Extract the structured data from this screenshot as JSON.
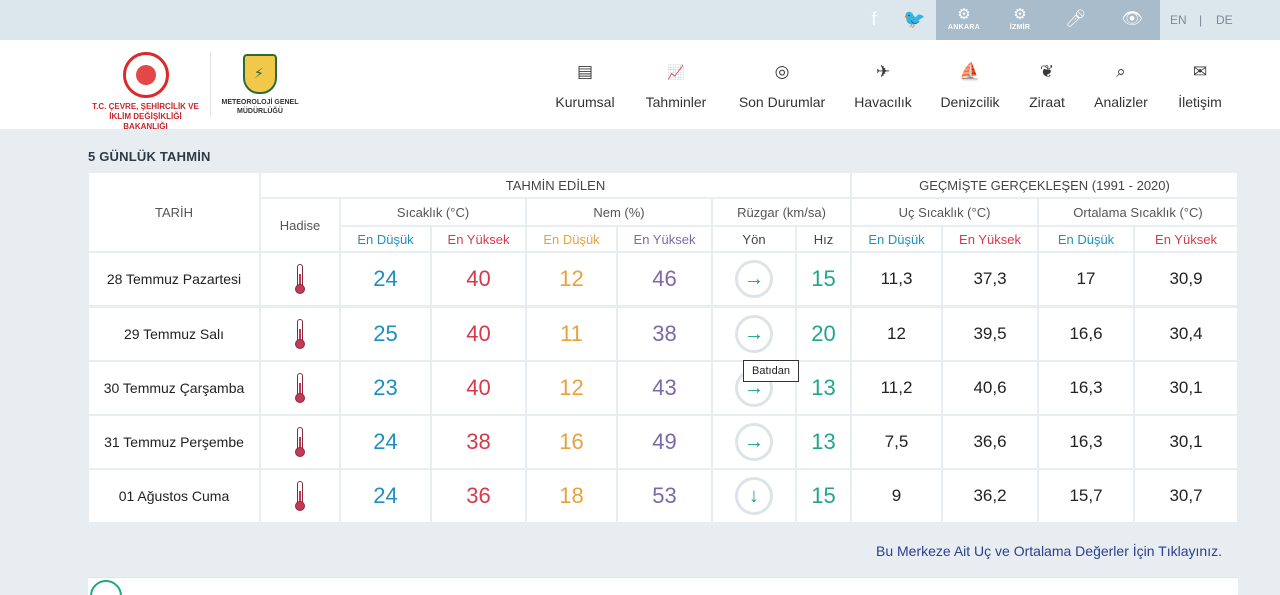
{
  "topbar": {
    "social": [
      {
        "name": "facebook-icon",
        "glyph": "f"
      },
      {
        "name": "twitter-icon",
        "glyph": "🐦"
      }
    ],
    "accessibility": [
      {
        "name": "ankara-sign-icon",
        "caption": "ANKARA"
      },
      {
        "name": "izmir-sign-icon",
        "caption": "İZMİR"
      },
      {
        "name": "microphone-icon",
        "caption": ""
      },
      {
        "name": "eye-slash-icon",
        "caption": ""
      }
    ],
    "languages": [
      "EN",
      "|",
      "DE"
    ]
  },
  "header": {
    "logo1_text": "T.C. ÇEVRE, ŞEHİRCİLİK VE İKLİM DEĞİŞİKLİĞİ BAKANLIĞI",
    "logo2_top": "METEOROLOJİ",
    "logo2_text": "METEOROLOJİ GENEL MÜDÜRLÜĞÜ",
    "nav": [
      {
        "name": "nav-kurumsal",
        "icon": "document-icon",
        "glyph": "▤",
        "label": "Kurumsal"
      },
      {
        "name": "nav-tahminler",
        "icon": "chart-icon",
        "glyph": "📈",
        "label": "Tahminler"
      },
      {
        "name": "nav-son-durumlar",
        "icon": "circle-check-icon",
        "glyph": "◎",
        "label": "Son Durumlar"
      },
      {
        "name": "nav-havacilik",
        "icon": "airplane-icon",
        "glyph": "✈",
        "label": "Havacılık"
      },
      {
        "name": "nav-denizcilik",
        "icon": "sail-icon",
        "glyph": "⛵",
        "label": "Denizcilik"
      },
      {
        "name": "nav-ziraat",
        "icon": "wheat-icon",
        "glyph": "❦",
        "label": "Ziraat"
      },
      {
        "name": "nav-analizler",
        "icon": "analysis-icon",
        "glyph": "⌕",
        "label": "Analizler"
      },
      {
        "name": "nav-iletisim",
        "icon": "envelope-icon",
        "glyph": "✉",
        "label": "İletişim"
      }
    ]
  },
  "section_title": "5 GÜNLÜK TAHMİN",
  "table": {
    "header": {
      "tarih": "TARİH",
      "tahmin_edilen": "TAHMİN EDİLEN",
      "gecmis": "GEÇMİŞTE GERÇEKLEŞEN (1991 - 2020)",
      "hadise": "Hadise",
      "sicaklik": "Sıcaklık (°C)",
      "nem": "Nem (%)",
      "ruzgar": "Rüzgar (km/sa)",
      "uc_sicaklik": "Uç Sıcaklık (°C)",
      "ortalama_sicaklik": "Ortalama Sıcaklık (°C)",
      "en_dusuk": "En Düşük",
      "en_yuksek": "En Yüksek",
      "yon": "Yön",
      "hiz": "Hız"
    },
    "rows": [
      {
        "date": "28 Temmuz Pazartesi",
        "temp_min": "24",
        "temp_max": "40",
        "hum_min": "12",
        "hum_max": "46",
        "wind_dir": "→",
        "wind_speed": "15",
        "ext_min": "11,3",
        "ext_max": "37,3",
        "avg_min": "17",
        "avg_max": "30,9"
      },
      {
        "date": "29 Temmuz Salı",
        "temp_min": "25",
        "temp_max": "40",
        "hum_min": "11",
        "hum_max": "38",
        "wind_dir": "→",
        "wind_speed": "20",
        "ext_min": "12",
        "ext_max": "39,5",
        "avg_min": "16,6",
        "avg_max": "30,4"
      },
      {
        "date": "30 Temmuz Çarşamba",
        "temp_min": "23",
        "temp_max": "40",
        "hum_min": "12",
        "hum_max": "43",
        "wind_dir": "→",
        "wind_speed": "13",
        "ext_min": "11,2",
        "ext_max": "40,6",
        "avg_min": "16,3",
        "avg_max": "30,1"
      },
      {
        "date": "31 Temmuz Perşembe",
        "temp_min": "24",
        "temp_max": "38",
        "hum_min": "16",
        "hum_max": "49",
        "wind_dir": "→",
        "wind_speed": "13",
        "ext_min": "7,5",
        "ext_max": "36,6",
        "avg_min": "16,3",
        "avg_max": "30,1"
      },
      {
        "date": "01 Ağustos Cuma",
        "temp_min": "24",
        "temp_max": "36",
        "hum_min": "18",
        "hum_max": "53",
        "wind_dir": "↓",
        "wind_speed": "15",
        "ext_min": "9",
        "ext_max": "36,2",
        "avg_min": "15,7",
        "avg_max": "30,7"
      }
    ]
  },
  "tooltip": "Batıdan",
  "link_text": "Bu Merkeze Ait Uç ve Ortalama Değerler İçin Tıklayınız.",
  "colors": {
    "blue": "#1f8fbf",
    "red": "#d63a4a",
    "orange": "#e6a23c",
    "purple": "#7c69a8",
    "teal": "#1fa68b"
  }
}
